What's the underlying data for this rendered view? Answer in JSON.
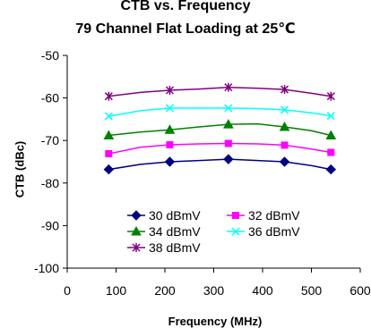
{
  "chart_data": {
    "type": "line",
    "title": "CTB vs. Frequency",
    "subtitle": "79 Channel Flat Loading at 25℃",
    "xlabel": "Frequency (MHz)",
    "ylabel": "CTB (dBc)",
    "xlim": [
      0,
      600
    ],
    "ylim": [
      -100,
      -50
    ],
    "xticks": [
      0,
      100,
      200,
      300,
      400,
      500,
      600
    ],
    "yticks": [
      -50,
      -60,
      -70,
      -80,
      -90,
      -100
    ],
    "grid": false,
    "legend_position": "bottom-center",
    "series": [
      {
        "name": "30 dBmV",
        "color": "#000080",
        "marker": "diamond",
        "x": [
          85,
          210,
          330,
          445,
          540
        ],
        "y": [
          -76.8,
          -75.0,
          -74.4,
          -75.0,
          -76.8
        ],
        "curve": [
          [
            85,
            -76.8
          ],
          [
            150,
            -75.6
          ],
          [
            210,
            -75.0
          ],
          [
            270,
            -74.7
          ],
          [
            330,
            -74.4
          ],
          [
            390,
            -74.7
          ],
          [
            445,
            -75.0
          ],
          [
            500,
            -75.9
          ],
          [
            540,
            -76.8
          ]
        ]
      },
      {
        "name": "32 dBmV",
        "color": "#ff00ff",
        "marker": "square",
        "x": [
          85,
          210,
          330,
          445,
          540
        ],
        "y": [
          -73.1,
          -71.0,
          -70.7,
          -71.1,
          -72.8
        ],
        "curve": [
          [
            85,
            -73.1
          ],
          [
            150,
            -71.6
          ],
          [
            210,
            -71.0
          ],
          [
            270,
            -70.8
          ],
          [
            330,
            -70.7
          ],
          [
            390,
            -70.8
          ],
          [
            445,
            -71.1
          ],
          [
            500,
            -72.0
          ],
          [
            540,
            -72.8
          ]
        ]
      },
      {
        "name": "34 dBmV",
        "color": "#008000",
        "marker": "triangle",
        "x": [
          85,
          210,
          330,
          445,
          540
        ],
        "y": [
          -68.8,
          -67.5,
          -66.2,
          -66.8,
          -68.8
        ],
        "curve": [
          [
            85,
            -68.8
          ],
          [
            150,
            -68.0
          ],
          [
            210,
            -67.5
          ],
          [
            270,
            -66.8
          ],
          [
            330,
            -66.2
          ],
          [
            390,
            -66.1
          ],
          [
            445,
            -66.8
          ],
          [
            500,
            -67.7
          ],
          [
            540,
            -68.8
          ]
        ]
      },
      {
        "name": "36 dBmV",
        "color": "#00ffff",
        "marker": "x",
        "x": [
          85,
          210,
          330,
          445,
          540
        ],
        "y": [
          -64.3,
          -62.4,
          -62.4,
          -62.8,
          -64.2
        ],
        "curve": [
          [
            85,
            -64.3
          ],
          [
            150,
            -63.0
          ],
          [
            210,
            -62.4
          ],
          [
            270,
            -62.4
          ],
          [
            330,
            -62.4
          ],
          [
            390,
            -62.5
          ],
          [
            445,
            -62.8
          ],
          [
            500,
            -63.5
          ],
          [
            540,
            -64.2
          ]
        ]
      },
      {
        "name": "38 dBmV",
        "color": "#800080",
        "marker": "asterisk",
        "x": [
          85,
          210,
          330,
          445,
          540
        ],
        "y": [
          -59.6,
          -58.2,
          -57.5,
          -58.0,
          -59.6
        ],
        "curve": [
          [
            85,
            -59.6
          ],
          [
            150,
            -58.7
          ],
          [
            210,
            -58.2
          ],
          [
            270,
            -57.9
          ],
          [
            330,
            -57.5
          ],
          [
            390,
            -57.7
          ],
          [
            445,
            -58.0
          ],
          [
            500,
            -58.9
          ],
          [
            540,
            -59.6
          ]
        ]
      }
    ]
  }
}
